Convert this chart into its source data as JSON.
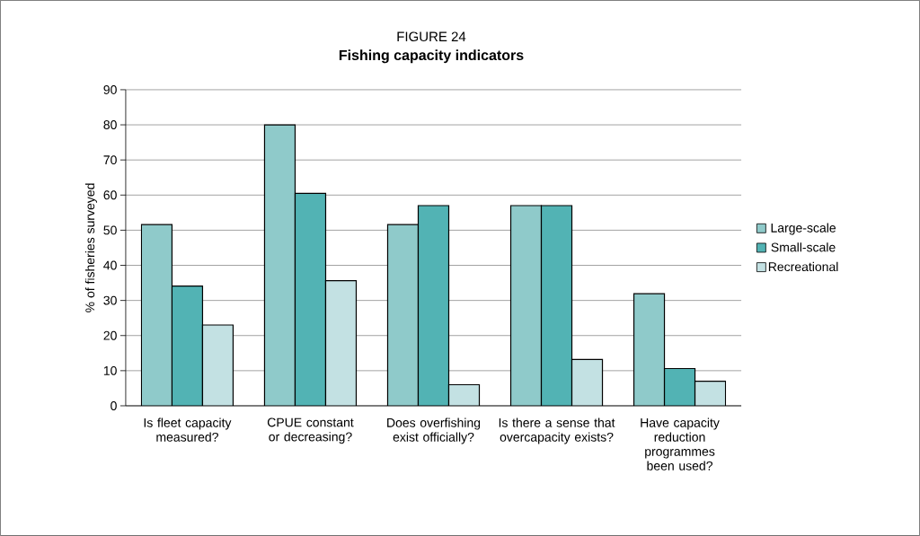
{
  "chart_data": {
    "type": "bar",
    "title": "FIGURE 24",
    "subtitle": "**Fishing capacity indicators**",
    "ylabel": "% of fisheries surveyed",
    "categories": [
      "Is fleet capacity measured?",
      "CPUE constant or decreasing?",
      "Does overfishing exist officially?",
      "Is there a sense that overcapacity exists?",
      "Have capacity reduction programmes been used?"
    ],
    "series": [
      {
        "name": "Large-scale",
        "color": "#8fcaca",
        "values": [
          51.6,
          80,
          51.6,
          57,
          31.9
        ]
      },
      {
        "name": "Small-scale",
        "color": "#52b3b4",
        "values": [
          34.1,
          60.5,
          57,
          57,
          10.6
        ]
      },
      {
        "name": "Recreational",
        "color": "#c3e1e3",
        "values": [
          23,
          35.6,
          6,
          13.2,
          7
        ]
      }
    ],
    "ylim": [
      0,
      90
    ],
    "yticks": [
      0,
      10,
      20,
      30,
      40,
      50,
      60,
      70,
      80,
      90
    ],
    "grid": "y",
    "legend": "right"
  }
}
